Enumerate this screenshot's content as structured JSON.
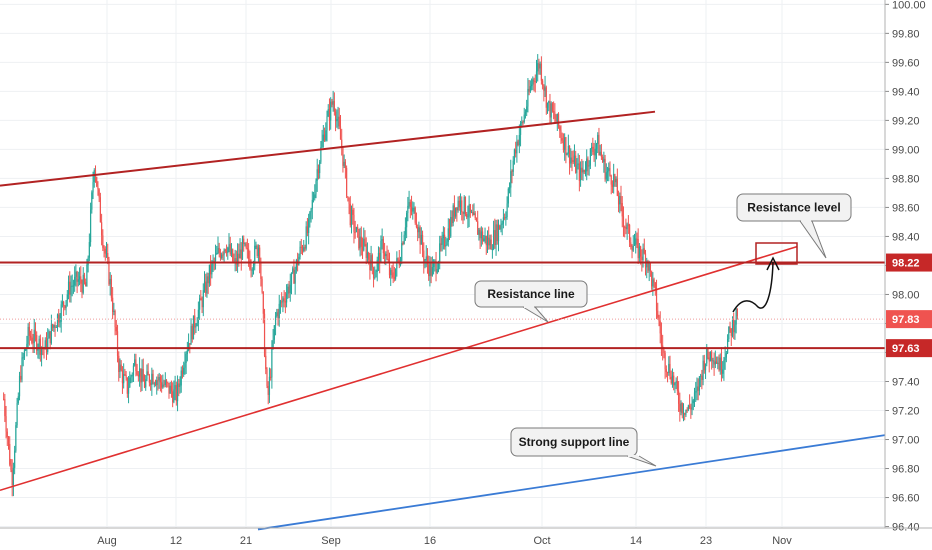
{
  "chart_data": {
    "type": "candlestick",
    "x_tick_labels": [
      "Aug",
      "12",
      "21",
      "Sep",
      "16",
      "Oct",
      "14",
      "23",
      "Nov"
    ],
    "y_tick_labels": [
      "100.00",
      "99.80",
      "99.60",
      "99.40",
      "99.20",
      "99.00",
      "98.80",
      "98.60",
      "98.40",
      "98.20",
      "98.00",
      "97.80",
      "97.60",
      "97.40",
      "97.20",
      "97.00",
      "96.80",
      "96.60",
      "96.40"
    ],
    "ylim": [
      96.39,
      100.03
    ],
    "grid": true,
    "price_path": [
      97.28,
      96.72,
      97.45,
      97.72,
      97.68,
      97.62,
      97.78,
      97.9,
      98.05,
      98.1,
      98.05,
      98.92,
      98.4,
      98.05,
      97.5,
      97.35,
      97.55,
      97.38,
      97.45,
      97.4,
      97.35,
      97.3,
      97.6,
      97.78,
      97.95,
      98.15,
      98.28,
      98.35,
      98.2,
      98.32,
      98.22,
      98.35,
      97.25,
      97.85,
      97.98,
      98.1,
      98.3,
      98.45,
      98.85,
      99.15,
      99.35,
      99.02,
      98.55,
      98.38,
      98.3,
      98.15,
      98.35,
      98.1,
      98.25,
      98.6,
      98.55,
      98.25,
      98.15,
      98.3,
      98.45,
      98.65,
      98.6,
      98.5,
      98.4,
      98.35,
      98.45,
      98.6,
      99.0,
      99.2,
      99.45,
      99.6,
      99.3,
      99.2,
      99.05,
      98.92,
      98.82,
      98.95,
      99.05,
      98.85,
      98.8,
      98.55,
      98.38,
      98.3,
      98.25,
      98.0,
      97.58,
      97.45,
      97.25,
      97.2,
      97.3,
      97.55,
      97.6,
      97.5,
      97.72,
      97.88
    ],
    "current_price": 97.83,
    "annotations": {
      "resistance_level_label": "Resistance level",
      "resistance_line_label": "Resistance line",
      "support_line_label": "Strong support line"
    },
    "lines": {
      "horizontal_upper": {
        "y": 98.22,
        "label": "98.22"
      },
      "horizontal_lower": {
        "y": 97.63,
        "label": "97.63"
      },
      "current_tag": {
        "y": 97.83,
        "label": "97.83"
      },
      "upper_trend": {
        "y_start": 98.75,
        "y_end": 99.26
      },
      "resistance_line": {
        "y_start": 96.65,
        "y_end": 98.33
      },
      "support_line": {
        "y_start": 96.38,
        "y_end": 97.03
      }
    },
    "colors": {
      "up_candle": "#26a69a",
      "down_candle": "#ef5350",
      "trend_red": "#b22222",
      "rising_red": "#e03030",
      "support_blue": "#3a7bd5",
      "price_tag": "#c62828",
      "current_tag": "#ef5350"
    }
  }
}
